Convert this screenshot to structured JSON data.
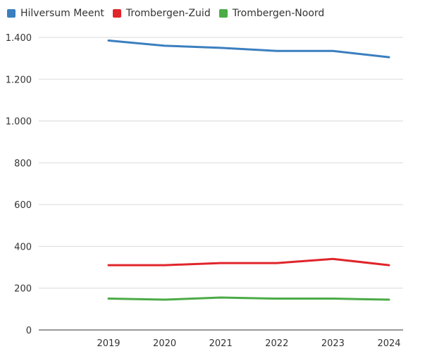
{
  "chart_data": {
    "type": "line",
    "title": "",
    "xlabel": "",
    "ylabel": "",
    "x": [
      "2019",
      "2020",
      "2021",
      "2022",
      "2023",
      "2024"
    ],
    "ylim": [
      0,
      1400
    ],
    "yticks": [
      0,
      200,
      400,
      600,
      800,
      1000,
      1200,
      1400
    ],
    "ytick_labels": [
      "0",
      "200",
      "400",
      "600",
      "800",
      "1.000",
      "1.200",
      "1.400"
    ],
    "grid": true,
    "legend_position": "top-left",
    "series": [
      {
        "name": "Hilversum Meent",
        "color": "#3b7fbf",
        "values": [
          1385,
          1360,
          1350,
          1335,
          1335,
          1305
        ]
      },
      {
        "name": "Trombergen-Zuid",
        "color": "#e0252b",
        "values": [
          310,
          310,
          320,
          320,
          340,
          310
        ]
      },
      {
        "name": "Trombergen-Noord",
        "color": "#4bab47",
        "values": [
          150,
          145,
          155,
          150,
          150,
          145
        ]
      }
    ]
  }
}
